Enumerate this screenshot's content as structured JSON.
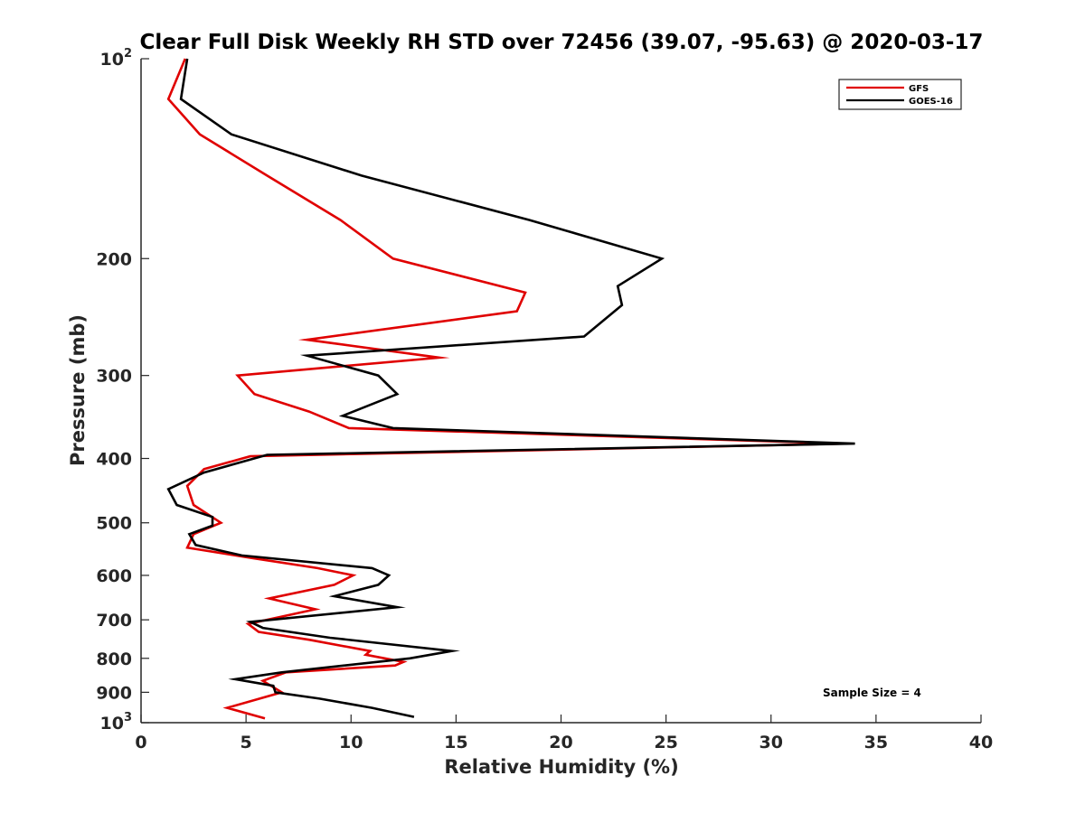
{
  "chart_data": {
    "type": "line",
    "title": "Clear Full Disk Weekly RH STD over 72456 (39.07, -95.63) @ 2020-03-17",
    "xlabel": "Relative Humidity (%)",
    "ylabel": "Pressure (mb)",
    "xlim": [
      0,
      40
    ],
    "ylim": [
      100,
      1000
    ],
    "y_scale": "log",
    "y_direction": "reversed",
    "x_ticks": [
      "0",
      "5",
      "10",
      "15",
      "20",
      "25",
      "30",
      "35",
      "40"
    ],
    "y_ticks": [
      {
        "value": 100,
        "base": "10",
        "exp": "2"
      },
      {
        "value": 200,
        "label": "200"
      },
      {
        "value": 300,
        "label": "300"
      },
      {
        "value": 400,
        "label": "400"
      },
      {
        "value": 500,
        "label": "500"
      },
      {
        "value": 600,
        "label": "600"
      },
      {
        "value": 700,
        "label": "700"
      },
      {
        "value": 800,
        "label": "800"
      },
      {
        "value": 900,
        "label": "900"
      },
      {
        "value": 1000,
        "base": "10",
        "exp": "3"
      }
    ],
    "legend_position": "top-right",
    "annotation": "Sample Size = 4",
    "series": [
      {
        "name": "GFS",
        "color": "#e00000",
        "points": [
          [
            2.1,
            100
          ],
          [
            1.3,
            115
          ],
          [
            2.8,
            130
          ],
          [
            6.0,
            150
          ],
          [
            9.5,
            175
          ],
          [
            12.0,
            200
          ],
          [
            18.3,
            225
          ],
          [
            17.9,
            240
          ],
          [
            7.9,
            265
          ],
          [
            14.2,
            282
          ],
          [
            4.6,
            300
          ],
          [
            5.4,
            320
          ],
          [
            8.0,
            340
          ],
          [
            9.9,
            360
          ],
          [
            33.5,
            380
          ],
          [
            5.2,
            397
          ],
          [
            3.0,
            415
          ],
          [
            2.2,
            440
          ],
          [
            2.5,
            470
          ],
          [
            3.8,
            500
          ],
          [
            2.5,
            520
          ],
          [
            2.2,
            545
          ],
          [
            5.3,
            565
          ],
          [
            8.4,
            585
          ],
          [
            10.1,
            600
          ],
          [
            9.2,
            620
          ],
          [
            6.1,
            650
          ],
          [
            8.3,
            675
          ],
          [
            5.1,
            710
          ],
          [
            5.6,
            730
          ],
          [
            8.0,
            750
          ],
          [
            10.9,
            780
          ],
          [
            10.7,
            790
          ],
          [
            12.5,
            810
          ],
          [
            12.1,
            820
          ],
          [
            6.9,
            840
          ],
          [
            5.8,
            865
          ],
          [
            6.7,
            900
          ],
          [
            4.1,
            950
          ],
          [
            5.9,
            985
          ]
        ]
      },
      {
        "name": "GOES-16",
        "color": "#000000",
        "points": [
          [
            2.2,
            100
          ],
          [
            1.9,
            115
          ],
          [
            4.3,
            130
          ],
          [
            10.5,
            150
          ],
          [
            18.5,
            175
          ],
          [
            24.8,
            200
          ],
          [
            22.7,
            220
          ],
          [
            22.9,
            235
          ],
          [
            21.1,
            262
          ],
          [
            7.9,
            280
          ],
          [
            11.3,
            300
          ],
          [
            12.2,
            320
          ],
          [
            9.6,
            345
          ],
          [
            12.0,
            360
          ],
          [
            34.0,
            380
          ],
          [
            6.0,
            395
          ],
          [
            3.0,
            420
          ],
          [
            1.3,
            445
          ],
          [
            1.7,
            470
          ],
          [
            3.4,
            490
          ],
          [
            3.4,
            505
          ],
          [
            2.3,
            520
          ],
          [
            2.6,
            540
          ],
          [
            4.8,
            560
          ],
          [
            11.0,
            585
          ],
          [
            11.8,
            600
          ],
          [
            11.3,
            620
          ],
          [
            9.2,
            645
          ],
          [
            12.2,
            670
          ],
          [
            5.2,
            705
          ],
          [
            5.8,
            720
          ],
          [
            9.0,
            745
          ],
          [
            14.8,
            780
          ],
          [
            12.8,
            800
          ],
          [
            6.7,
            840
          ],
          [
            4.5,
            860
          ],
          [
            6.3,
            880
          ],
          [
            6.4,
            900
          ],
          [
            8.5,
            920
          ],
          [
            11.0,
            950
          ],
          [
            13.0,
            980
          ]
        ]
      }
    ]
  }
}
